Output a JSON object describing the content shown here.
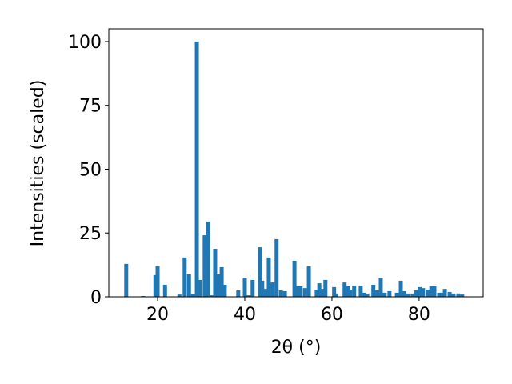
{
  "chart_data": {
    "type": "bar",
    "x_label": "2θ (°)",
    "y_label": "Intensities (scaled)",
    "color": "#1f77b4",
    "x": [
      12.8,
      16.7,
      19.5,
      20.0,
      21.7,
      25.0,
      26.2,
      27.2,
      28.1,
      29.0,
      29.7,
      30.8,
      31.6,
      32.3,
      33.2,
      33.9,
      34.7,
      35.4,
      38.5,
      40.0,
      40.9,
      41.8,
      43.5,
      44.0,
      44.6,
      45.5,
      46.4,
      47.3,
      48.3,
      49.2,
      51.4,
      52.1,
      52.8,
      53.8,
      54.7,
      56.5,
      57.1,
      57.8,
      58.5,
      60.5,
      61.0,
      62.9,
      63.7,
      64.2,
      65.1,
      66.6,
      67.3,
      68.1,
      69.5,
      70.3,
      71.2,
      72.1,
      73.2,
      74.9,
      75.8,
      76.5,
      77.4,
      78.5,
      79.2,
      80.1,
      80.9,
      82.0,
      82.8,
      83.5,
      84.6,
      85.3,
      85.9,
      87.0,
      87.9,
      89.0,
      89.9
    ],
    "values": [
      12.9,
      0.3,
      8.5,
      11.9,
      4.7,
      0.9,
      15.4,
      8.8,
      1.0,
      100,
      6.6,
      24.1,
      29.5,
      0.6,
      18.8,
      8.8,
      11.6,
      4.7,
      2.5,
      7.2,
      0.6,
      6.6,
      19.4,
      6.3,
      3.1,
      15.4,
      5.6,
      22.6,
      2.5,
      2.2,
      14.1,
      4.1,
      4.1,
      3.4,
      11.9,
      2.8,
      5.3,
      3.1,
      6.6,
      3.8,
      1.3,
      5.6,
      4.1,
      2.8,
      4.4,
      4.4,
      1.6,
      1.3,
      4.7,
      2.5,
      7.5,
      1.6,
      2.2,
      1.6,
      6.3,
      2.2,
      1.3,
      1.3,
      2.5,
      3.8,
      3.4,
      2.8,
      4.4,
      4.1,
      1.6,
      1.6,
      3.1,
      1.9,
      1.3,
      1.3,
      0.9
    ],
    "xlim": [
      8.8,
      94.7
    ],
    "ylim": [
      0,
      105
    ],
    "xticks": [
      20,
      40,
      60,
      80
    ],
    "yticks": [
      0,
      25,
      50,
      75,
      100
    ]
  }
}
